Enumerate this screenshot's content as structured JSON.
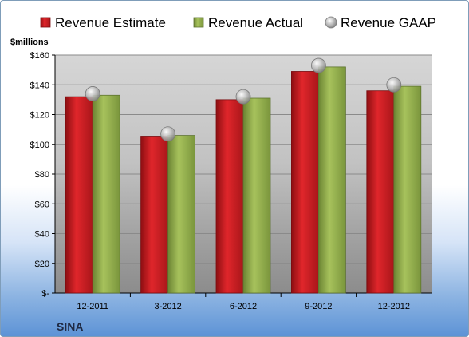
{
  "chart_data": {
    "type": "bar",
    "unit_label": "$millions",
    "company": "SINA",
    "categories": [
      "12-2011",
      "3-2012",
      "6-2012",
      "9-2012",
      "12-2012"
    ],
    "series": [
      {
        "name": "Revenue Estimate",
        "kind": "bar",
        "color": "#c8151b",
        "values": [
          132,
          105.5,
          130,
          149,
          136
        ]
      },
      {
        "name": "Revenue Actual",
        "kind": "bar",
        "color": "#8faa4a",
        "values": [
          133,
          106,
          131,
          152,
          139
        ]
      },
      {
        "name": "Revenue GAAP",
        "kind": "marker",
        "color": "#b9b9b9",
        "values": [
          134,
          107,
          132,
          153,
          140
        ]
      }
    ],
    "ylim": [
      0,
      160
    ],
    "yticks": [
      0,
      20,
      40,
      60,
      80,
      100,
      120,
      140,
      160
    ],
    "ytick_labels": [
      "$-",
      "$20",
      "$40",
      "$60",
      "$80",
      "$100",
      "$120",
      "$140",
      "$160"
    ],
    "grid": true,
    "legend_position": "top"
  }
}
